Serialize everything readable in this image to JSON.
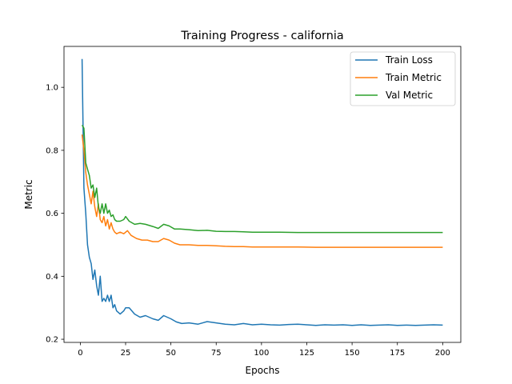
{
  "chart_data": {
    "type": "line",
    "title": "Training Progress - california",
    "xlabel": "Epochs",
    "ylabel": "Metric",
    "xlim": [
      -9,
      210
    ],
    "ylim": [
      0.19,
      1.13
    ],
    "xticks": [
      0,
      25,
      50,
      75,
      100,
      125,
      150,
      175,
      200
    ],
    "yticks": [
      0.2,
      0.4,
      0.6,
      0.8,
      1.0
    ],
    "xtick_labels": [
      "0",
      "25",
      "50",
      "75",
      "100",
      "125",
      "150",
      "175",
      "200"
    ],
    "ytick_labels": [
      "0.2",
      "0.4",
      "0.6",
      "0.8",
      "1.0"
    ],
    "grid": false,
    "legend_position": "top-right",
    "series": [
      {
        "name": "Train Loss",
        "color": "#1f77b4",
        "points": [
          [
            1,
            1.09
          ],
          [
            2,
            0.68
          ],
          [
            3,
            0.6
          ],
          [
            4,
            0.5
          ],
          [
            5,
            0.46
          ],
          [
            6,
            0.44
          ],
          [
            7,
            0.39
          ],
          [
            8,
            0.42
          ],
          [
            9,
            0.37
          ],
          [
            10,
            0.34
          ],
          [
            11,
            0.4
          ],
          [
            12,
            0.32
          ],
          [
            13,
            0.33
          ],
          [
            14,
            0.32
          ],
          [
            15,
            0.34
          ],
          [
            16,
            0.32
          ],
          [
            17,
            0.34
          ],
          [
            18,
            0.3
          ],
          [
            19,
            0.31
          ],
          [
            20,
            0.29
          ],
          [
            22,
            0.28
          ],
          [
            24,
            0.29
          ],
          [
            25,
            0.3
          ],
          [
            27,
            0.3
          ],
          [
            30,
            0.28
          ],
          [
            33,
            0.27
          ],
          [
            36,
            0.275
          ],
          [
            40,
            0.265
          ],
          [
            43,
            0.26
          ],
          [
            46,
            0.275
          ],
          [
            50,
            0.265
          ],
          [
            53,
            0.255
          ],
          [
            56,
            0.25
          ],
          [
            60,
            0.252
          ],
          [
            65,
            0.248
          ],
          [
            70,
            0.256
          ],
          [
            75,
            0.252
          ],
          [
            80,
            0.248
          ],
          [
            85,
            0.246
          ],
          [
            90,
            0.25
          ],
          [
            95,
            0.246
          ],
          [
            100,
            0.248
          ],
          [
            105,
            0.246
          ],
          [
            110,
            0.245
          ],
          [
            115,
            0.247
          ],
          [
            120,
            0.248
          ],
          [
            125,
            0.246
          ],
          [
            130,
            0.244
          ],
          [
            135,
            0.246
          ],
          [
            140,
            0.245
          ],
          [
            145,
            0.246
          ],
          [
            150,
            0.244
          ],
          [
            155,
            0.246
          ],
          [
            160,
            0.244
          ],
          [
            165,
            0.245
          ],
          [
            170,
            0.246
          ],
          [
            175,
            0.244
          ],
          [
            180,
            0.245
          ],
          [
            185,
            0.244
          ],
          [
            190,
            0.245
          ],
          [
            195,
            0.246
          ],
          [
            200,
            0.245
          ]
        ]
      },
      {
        "name": "Train Metric",
        "color": "#ff7f0e",
        "points": [
          [
            1,
            0.85
          ],
          [
            2,
            0.8
          ],
          [
            3,
            0.73
          ],
          [
            4,
            0.69
          ],
          [
            5,
            0.66
          ],
          [
            6,
            0.63
          ],
          [
            7,
            0.67
          ],
          [
            8,
            0.62
          ],
          [
            9,
            0.59
          ],
          [
            10,
            0.63
          ],
          [
            11,
            0.58
          ],
          [
            12,
            0.57
          ],
          [
            13,
            0.59
          ],
          [
            14,
            0.56
          ],
          [
            15,
            0.58
          ],
          [
            16,
            0.55
          ],
          [
            17,
            0.57
          ],
          [
            18,
            0.55
          ],
          [
            19,
            0.54
          ],
          [
            20,
            0.535
          ],
          [
            22,
            0.54
          ],
          [
            24,
            0.535
          ],
          [
            26,
            0.545
          ],
          [
            28,
            0.53
          ],
          [
            31,
            0.52
          ],
          [
            34,
            0.515
          ],
          [
            37,
            0.515
          ],
          [
            40,
            0.51
          ],
          [
            43,
            0.51
          ],
          [
            46,
            0.52
          ],
          [
            49,
            0.515
          ],
          [
            52,
            0.505
          ],
          [
            55,
            0.5
          ],
          [
            60,
            0.5
          ],
          [
            65,
            0.498
          ],
          [
            70,
            0.498
          ],
          [
            75,
            0.497
          ],
          [
            80,
            0.495
          ],
          [
            85,
            0.494
          ],
          [
            90,
            0.494
          ],
          [
            95,
            0.493
          ],
          [
            100,
            0.493
          ],
          [
            110,
            0.493
          ],
          [
            120,
            0.493
          ],
          [
            130,
            0.492
          ],
          [
            140,
            0.492
          ],
          [
            150,
            0.492
          ],
          [
            160,
            0.492
          ],
          [
            170,
            0.492
          ],
          [
            180,
            0.492
          ],
          [
            190,
            0.492
          ],
          [
            200,
            0.492
          ]
        ]
      },
      {
        "name": "Val Metric",
        "color": "#2ca02c",
        "points": [
          [
            1,
            0.88
          ],
          [
            2,
            0.87
          ],
          [
            3,
            0.76
          ],
          [
            4,
            0.74
          ],
          [
            5,
            0.72
          ],
          [
            6,
            0.68
          ],
          [
            7,
            0.69
          ],
          [
            8,
            0.65
          ],
          [
            9,
            0.68
          ],
          [
            10,
            0.62
          ],
          [
            11,
            0.6
          ],
          [
            12,
            0.63
          ],
          [
            13,
            0.6
          ],
          [
            14,
            0.63
          ],
          [
            15,
            0.6
          ],
          [
            16,
            0.61
          ],
          [
            17,
            0.59
          ],
          [
            18,
            0.595
          ],
          [
            19,
            0.58
          ],
          [
            20,
            0.575
          ],
          [
            22,
            0.575
          ],
          [
            24,
            0.58
          ],
          [
            25,
            0.59
          ],
          [
            27,
            0.575
          ],
          [
            30,
            0.565
          ],
          [
            33,
            0.568
          ],
          [
            36,
            0.565
          ],
          [
            40,
            0.558
          ],
          [
            43,
            0.552
          ],
          [
            46,
            0.565
          ],
          [
            49,
            0.56
          ],
          [
            52,
            0.55
          ],
          [
            55,
            0.55
          ],
          [
            60,
            0.548
          ],
          [
            65,
            0.545
          ],
          [
            70,
            0.546
          ],
          [
            75,
            0.543
          ],
          [
            80,
            0.542
          ],
          [
            85,
            0.542
          ],
          [
            90,
            0.541
          ],
          [
            95,
            0.54
          ],
          [
            100,
            0.54
          ],
          [
            110,
            0.54
          ],
          [
            120,
            0.539
          ],
          [
            130,
            0.539
          ],
          [
            140,
            0.539
          ],
          [
            150,
            0.539
          ],
          [
            160,
            0.539
          ],
          [
            170,
            0.539
          ],
          [
            180,
            0.539
          ],
          [
            190,
            0.539
          ],
          [
            200,
            0.539
          ]
        ]
      }
    ]
  }
}
